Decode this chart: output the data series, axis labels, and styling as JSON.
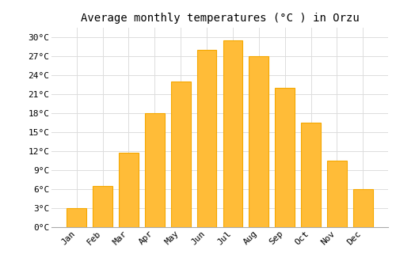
{
  "title": "Average monthly temperatures (°C ) in Orzu",
  "months": [
    "Jan",
    "Feb",
    "Mar",
    "Apr",
    "May",
    "Jun",
    "Jul",
    "Aug",
    "Sep",
    "Oct",
    "Nov",
    "Dec"
  ],
  "values": [
    3.0,
    6.5,
    11.7,
    18.0,
    23.0,
    28.0,
    29.5,
    27.0,
    22.0,
    16.5,
    10.5,
    6.0
  ],
  "bar_color": "#FFBC38",
  "bar_edge_color": "#F5A800",
  "background_color": "#FFFFFF",
  "plot_bg_color": "#FFFFFF",
  "grid_color": "#DDDDDD",
  "yticks": [
    0,
    3,
    6,
    9,
    12,
    15,
    18,
    21,
    24,
    27,
    30
  ],
  "ylim": [
    0,
    31.5
  ],
  "title_fontsize": 10,
  "tick_fontsize": 8,
  "font_family": "monospace",
  "bar_width": 0.75
}
